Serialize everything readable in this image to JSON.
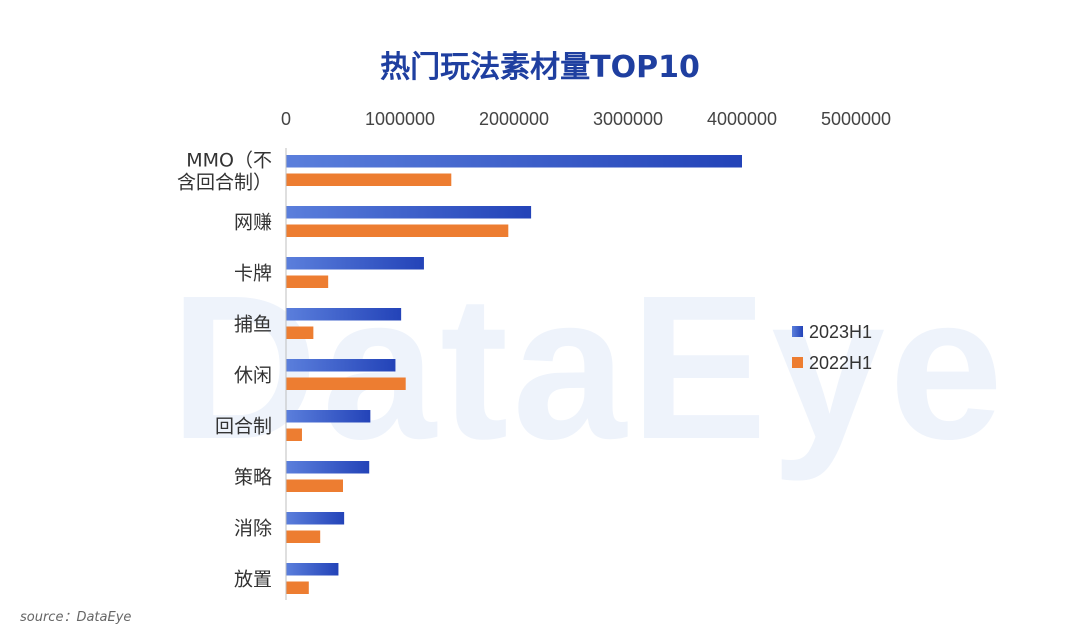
{
  "watermark": "DataEye",
  "chart_data": {
    "type": "bar",
    "orientation": "horizontal",
    "title": "热门玩法素材量TOP10",
    "categories": [
      "MMO（不含回合制）",
      "网赚",
      "卡牌",
      "捕鱼",
      "休闲",
      "回合制",
      "策略",
      "消除",
      "放置"
    ],
    "category_lines": [
      [
        "MMO（不",
        "含回合制）"
      ],
      [
        "网赚"
      ],
      [
        "卡牌"
      ],
      [
        "捕鱼"
      ],
      [
        "休闲"
      ],
      [
        "回合制"
      ],
      [
        "策略"
      ],
      [
        "消除"
      ],
      [
        "放置"
      ]
    ],
    "series": [
      {
        "name": "2023H1",
        "color": "#2343b8",
        "gradient_start": "#5b7fdc",
        "values": [
          4000000,
          2150000,
          1210000,
          1010000,
          960000,
          740000,
          730000,
          510000,
          460000
        ]
      },
      {
        "name": "2022H1",
        "color": "#ed7d31",
        "values": [
          1450000,
          1950000,
          370000,
          240000,
          1050000,
          140000,
          500000,
          300000,
          200000
        ]
      }
    ],
    "xlim": [
      0,
      5000000
    ],
    "x_ticks": [
      "0",
      "1000000",
      "2000000",
      "3000000",
      "4000000",
      "5000000"
    ],
    "x_tick_values": [
      0,
      1000000,
      2000000,
      3000000,
      4000000,
      5000000
    ],
    "x_axis_position": "top",
    "grid": false,
    "legend_position": "right"
  },
  "source": "source：DataEye"
}
